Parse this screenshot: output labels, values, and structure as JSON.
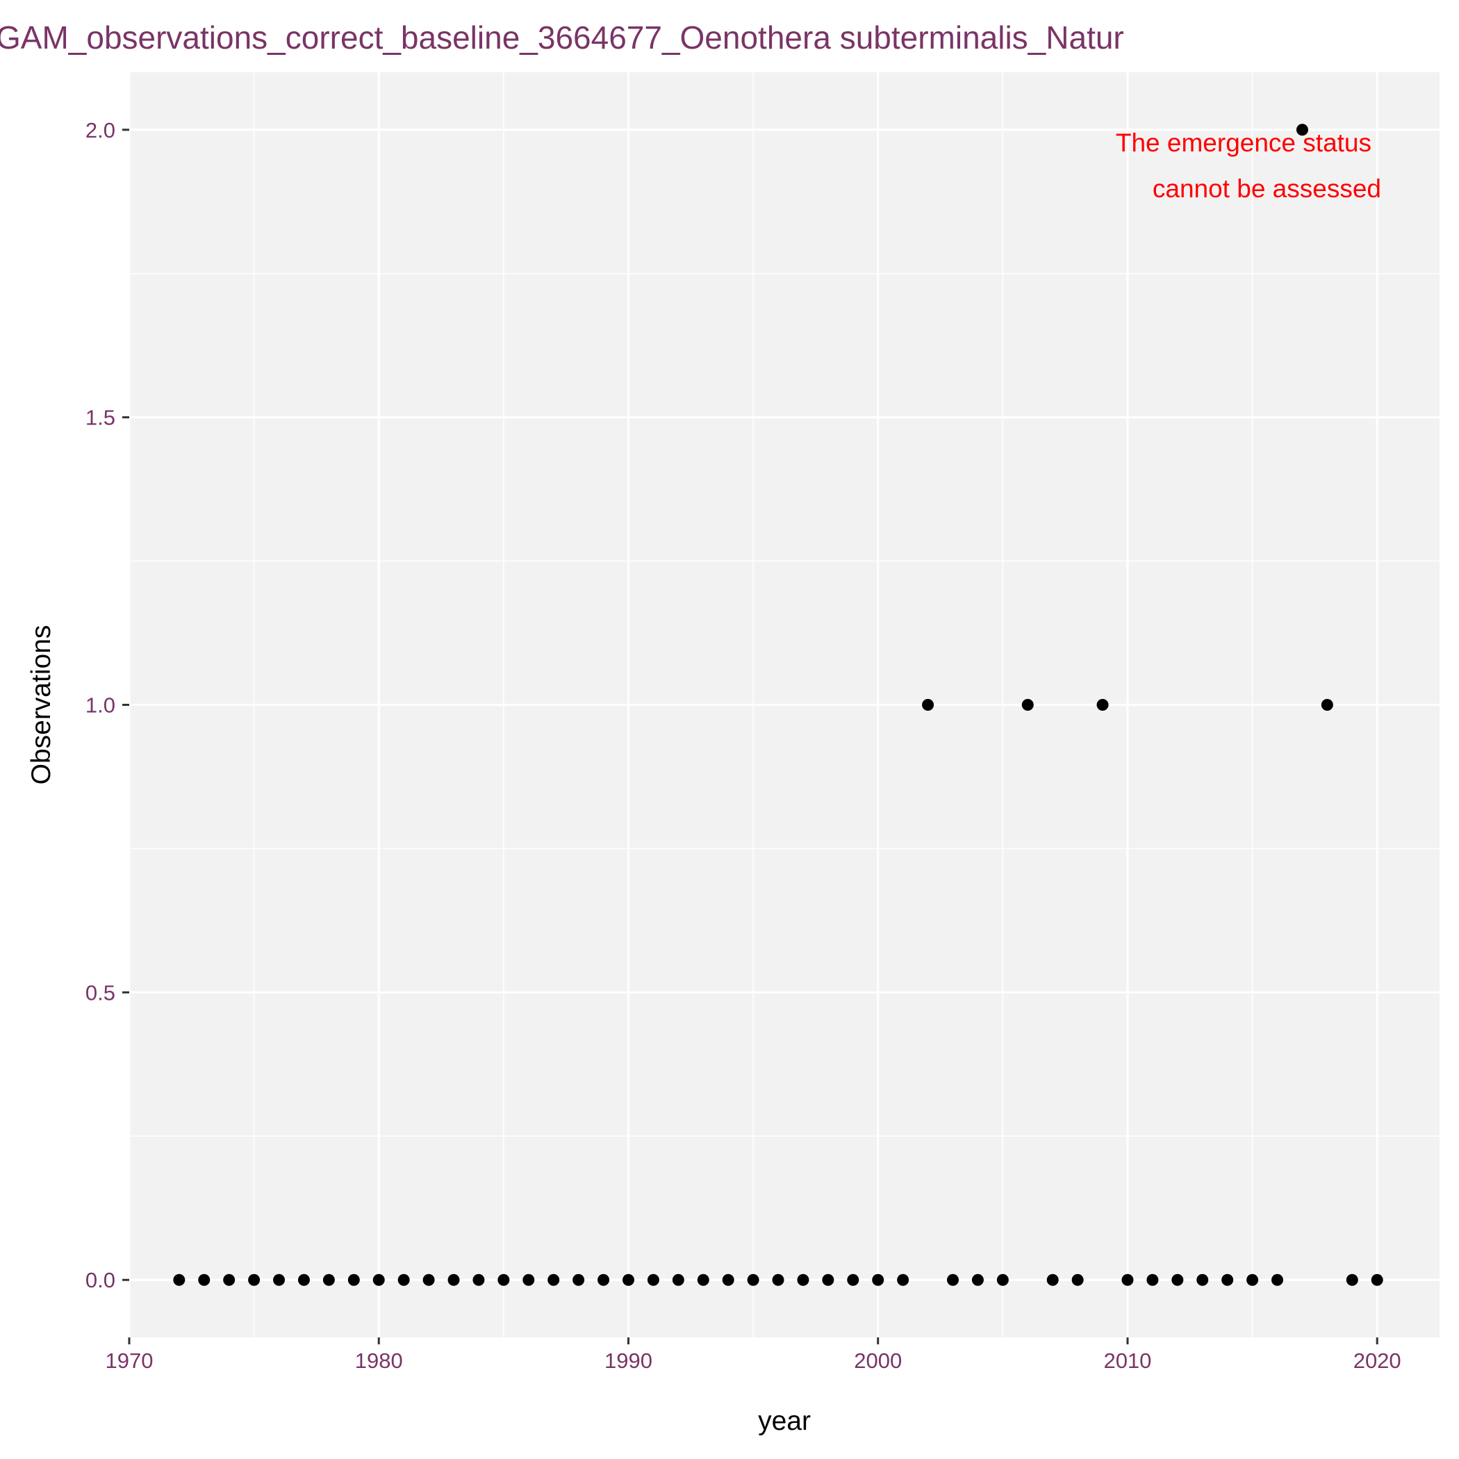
{
  "chart_data": {
    "type": "scatter",
    "title": "GAM_observations_correct_baseline_3664677_Oenothera subterminalis_Natur",
    "xlabel": "year",
    "ylabel": "Observations",
    "xlim": [
      1970,
      2022.5
    ],
    "ylim": [
      -0.1,
      2.1
    ],
    "x_ticks": [
      1970,
      1980,
      1990,
      2000,
      2010,
      2020
    ],
    "x_tick_labels": [
      "1970",
      "1980",
      "1990",
      "2000",
      "2010",
      "2020"
    ],
    "y_ticks": [
      0,
      0.5,
      1,
      1.5,
      2
    ],
    "y_tick_labels": [
      "0.0",
      "0.5",
      "1.0",
      "1.5",
      "2.0"
    ],
    "grid": true,
    "annotation": [
      "The emergence status",
      "cannot be assessed"
    ],
    "colors": {
      "points": "#000000",
      "panel": "#f2f2f2",
      "grid": "#ffffff",
      "annotation": "#ff0000",
      "title": "#7a3466",
      "ticks": "#7a3466"
    },
    "points": [
      {
        "x": 1972,
        "y": 0
      },
      {
        "x": 1973,
        "y": 0
      },
      {
        "x": 1974,
        "y": 0
      },
      {
        "x": 1975,
        "y": 0
      },
      {
        "x": 1976,
        "y": 0
      },
      {
        "x": 1977,
        "y": 0
      },
      {
        "x": 1978,
        "y": 0
      },
      {
        "x": 1979,
        "y": 0
      },
      {
        "x": 1980,
        "y": 0
      },
      {
        "x": 1981,
        "y": 0
      },
      {
        "x": 1982,
        "y": 0
      },
      {
        "x": 1983,
        "y": 0
      },
      {
        "x": 1984,
        "y": 0
      },
      {
        "x": 1985,
        "y": 0
      },
      {
        "x": 1986,
        "y": 0
      },
      {
        "x": 1987,
        "y": 0
      },
      {
        "x": 1988,
        "y": 0
      },
      {
        "x": 1989,
        "y": 0
      },
      {
        "x": 1990,
        "y": 0
      },
      {
        "x": 1991,
        "y": 0
      },
      {
        "x": 1992,
        "y": 0
      },
      {
        "x": 1993,
        "y": 0
      },
      {
        "x": 1994,
        "y": 0
      },
      {
        "x": 1995,
        "y": 0
      },
      {
        "x": 1996,
        "y": 0
      },
      {
        "x": 1997,
        "y": 0
      },
      {
        "x": 1998,
        "y": 0
      },
      {
        "x": 1999,
        "y": 0
      },
      {
        "x": 2000,
        "y": 0
      },
      {
        "x": 2001,
        "y": 0
      },
      {
        "x": 2002,
        "y": 1
      },
      {
        "x": 2003,
        "y": 0
      },
      {
        "x": 2004,
        "y": 0
      },
      {
        "x": 2005,
        "y": 0
      },
      {
        "x": 2006,
        "y": 1
      },
      {
        "x": 2007,
        "y": 0
      },
      {
        "x": 2008,
        "y": 0
      },
      {
        "x": 2009,
        "y": 1
      },
      {
        "x": 2010,
        "y": 0
      },
      {
        "x": 2011,
        "y": 0
      },
      {
        "x": 2012,
        "y": 0
      },
      {
        "x": 2013,
        "y": 0
      },
      {
        "x": 2014,
        "y": 0
      },
      {
        "x": 2015,
        "y": 0
      },
      {
        "x": 2016,
        "y": 0
      },
      {
        "x": 2017,
        "y": 2
      },
      {
        "x": 2018,
        "y": 1
      },
      {
        "x": 2019,
        "y": 0
      },
      {
        "x": 2020,
        "y": 0
      }
    ]
  }
}
